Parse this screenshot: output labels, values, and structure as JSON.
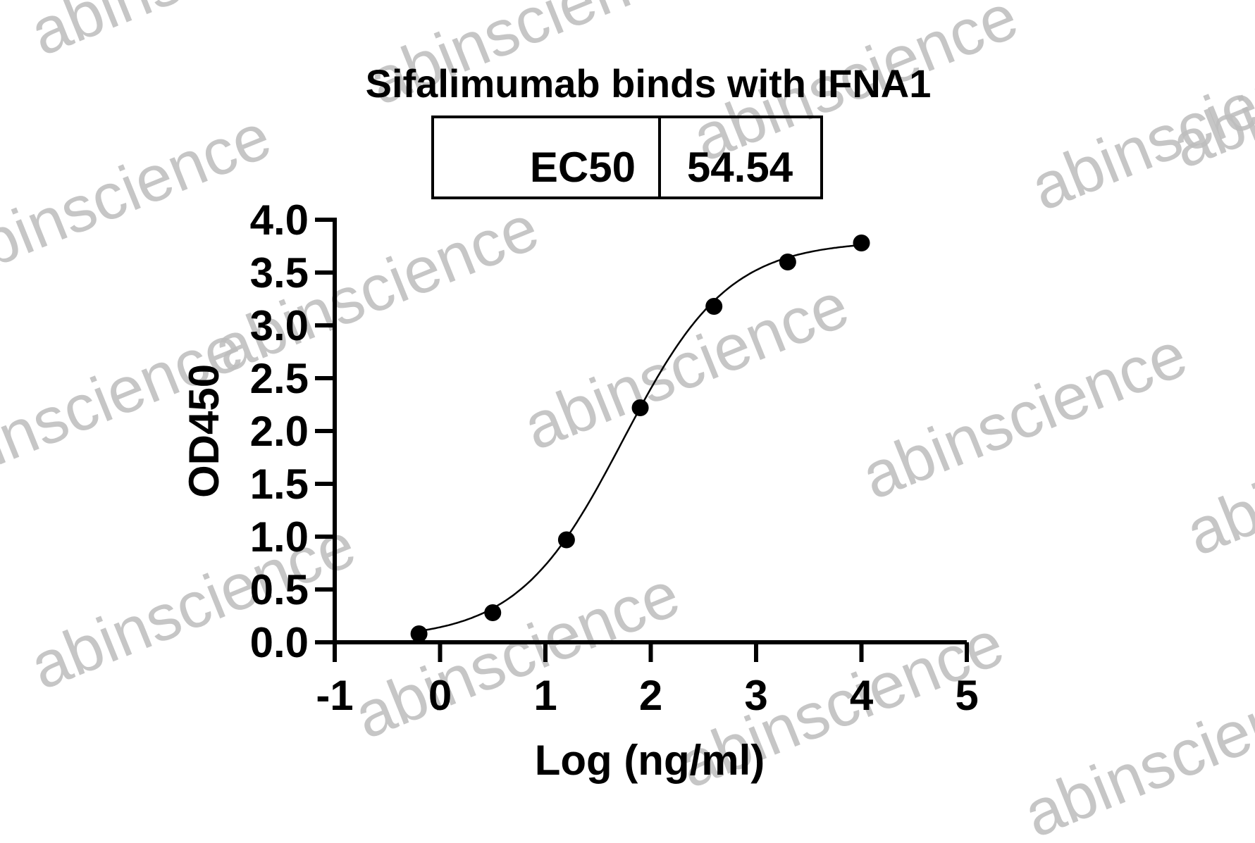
{
  "chart_data": {
    "type": "scatter",
    "title": "Sifalimumab binds with IFNA1",
    "ec50_label": "EC50",
    "ec50_value": "54.54",
    "xlabel": "Log (ng/ml)",
    "ylabel": "OD450",
    "xlim": [
      -1,
      5
    ],
    "ylim": [
      0,
      4
    ],
    "xticks": [
      "-1",
      "0",
      "1",
      "2",
      "3",
      "4",
      "5"
    ],
    "yticks": [
      "0.0",
      "0.5",
      "1.0",
      "1.5",
      "2.0",
      "2.5",
      "3.0",
      "3.5",
      "4.0"
    ],
    "grid": false,
    "points": [
      {
        "x": -0.2,
        "y": 0.08
      },
      {
        "x": 0.5,
        "y": 0.28
      },
      {
        "x": 1.2,
        "y": 0.97
      },
      {
        "x": 1.9,
        "y": 2.22
      },
      {
        "x": 2.6,
        "y": 3.18
      },
      {
        "x": 3.3,
        "y": 3.6
      },
      {
        "x": 4.0,
        "y": 3.78
      }
    ],
    "fit": {
      "model": "4PL",
      "bottom": 0.03,
      "top": 3.8,
      "logEC50": 1.737,
      "hill": 0.87
    },
    "marker_color": "#000000",
    "line_color": "#000000"
  },
  "watermark": "abinscience"
}
